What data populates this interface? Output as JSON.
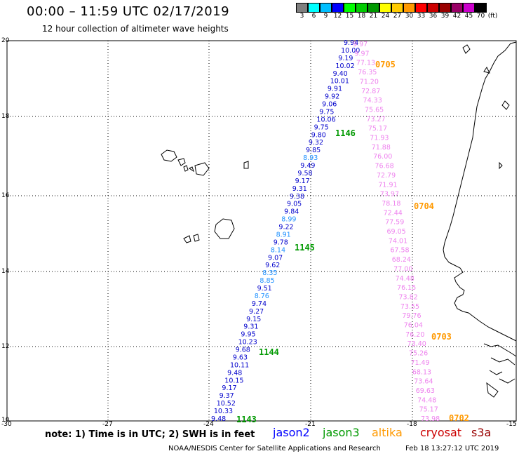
{
  "title": "00:00 – 11:59 UTC 02/17/2019",
  "subtitle": "12 hour collection of altimeter wave heights",
  "colorbar": {
    "colors": [
      "#7f7f7f",
      "#00ffff",
      "#00bfff",
      "#0000ff",
      "#00ff00",
      "#00cc00",
      "#009900",
      "#ffff00",
      "#ffcc00",
      "#ff9900",
      "#ff0000",
      "#cc0000",
      "#990000",
      "#990066",
      "#cc00cc",
      "#000000"
    ],
    "labels": [
      "3",
      "6",
      "9",
      "12",
      "15",
      "18",
      "21",
      "24",
      "27",
      "30",
      "33",
      "36",
      "39",
      "42",
      "45",
      "70",
      "(ft)"
    ]
  },
  "axes": {
    "lat_ticks": [
      "20",
      "18",
      "16",
      "14",
      "12",
      "10"
    ],
    "lon_ticks": [
      "-30",
      "-27",
      "-24",
      "-21",
      "-18",
      "-15"
    ]
  },
  "tracks": {
    "jason2": {
      "color": "#0000cc",
      "values": [
        "9.94",
        "10.00",
        "9.19",
        "10.02",
        "9.40",
        "10.01",
        "9.91",
        "9.92",
        "9.06",
        "9.75",
        "10.06",
        "9.75",
        "9.80",
        "9.32",
        "9.85",
        "8.93",
        "9.49",
        "9.58",
        "9.17",
        "9.31",
        "9.38",
        "9.05",
        "9.84",
        "8.99",
        "9.22",
        "8.91",
        "9.78",
        "8.14",
        "9.07",
        "9.62",
        "8.35",
        "8.85",
        "9.51",
        "8.76",
        "9.74",
        "9.27",
        "9.15",
        "9.31",
        "9.95",
        "10.23",
        "9.68",
        "9.63",
        "10.11",
        "9.48",
        "10.15",
        "9.17",
        "9.37",
        "10.52",
        "10.33",
        "9.48"
      ],
      "light_indices": [
        15,
        23,
        25,
        27,
        30,
        31,
        33
      ]
    },
    "cryosat_track": {
      "color": "#ee82ee",
      "values": [
        "9.97",
        "9.97",
        "77.13",
        "76.35",
        "71.20",
        "72.87",
        "74.33",
        "75.65",
        "73.27",
        "75.17",
        "71.93",
        "71.88",
        "76.00",
        "76.68",
        "72.79",
        "71.91",
        "73.97",
        "78.18",
        "72.44",
        "77.59",
        "69.05",
        "74.01",
        "67.58",
        "68.24",
        "77.00",
        "74.48",
        "76.15",
        "73.82",
        "73.55",
        "79.76",
        "76.04",
        "76.20",
        "73.40",
        "75.26",
        "71.49",
        "68.13",
        "73.64",
        "69.63",
        "74.48",
        "75.17",
        "73.98"
      ]
    }
  },
  "pass_labels": {
    "jason2": [
      "1146",
      "1145",
      "1144",
      "1143"
    ],
    "altika": [
      "0705",
      "0704",
      "0703",
      "0702"
    ]
  },
  "note": "note:  1) Time is in UTC;  2) SWH is in feet",
  "legend": [
    {
      "name": "jason2",
      "color": "#0000ff"
    },
    {
      "name": "jason3",
      "color": "#009900"
    },
    {
      "name": "altika",
      "color": "#ff9900"
    },
    {
      "name": "cryosat",
      "color": "#cc0000"
    },
    {
      "name": "s3a",
      "color": "#990000"
    }
  ],
  "footer": "NOAA/NESDIS Center for Satellite Applications and Research",
  "footer_time": "Feb 18 13:27:12 UTC 2019"
}
